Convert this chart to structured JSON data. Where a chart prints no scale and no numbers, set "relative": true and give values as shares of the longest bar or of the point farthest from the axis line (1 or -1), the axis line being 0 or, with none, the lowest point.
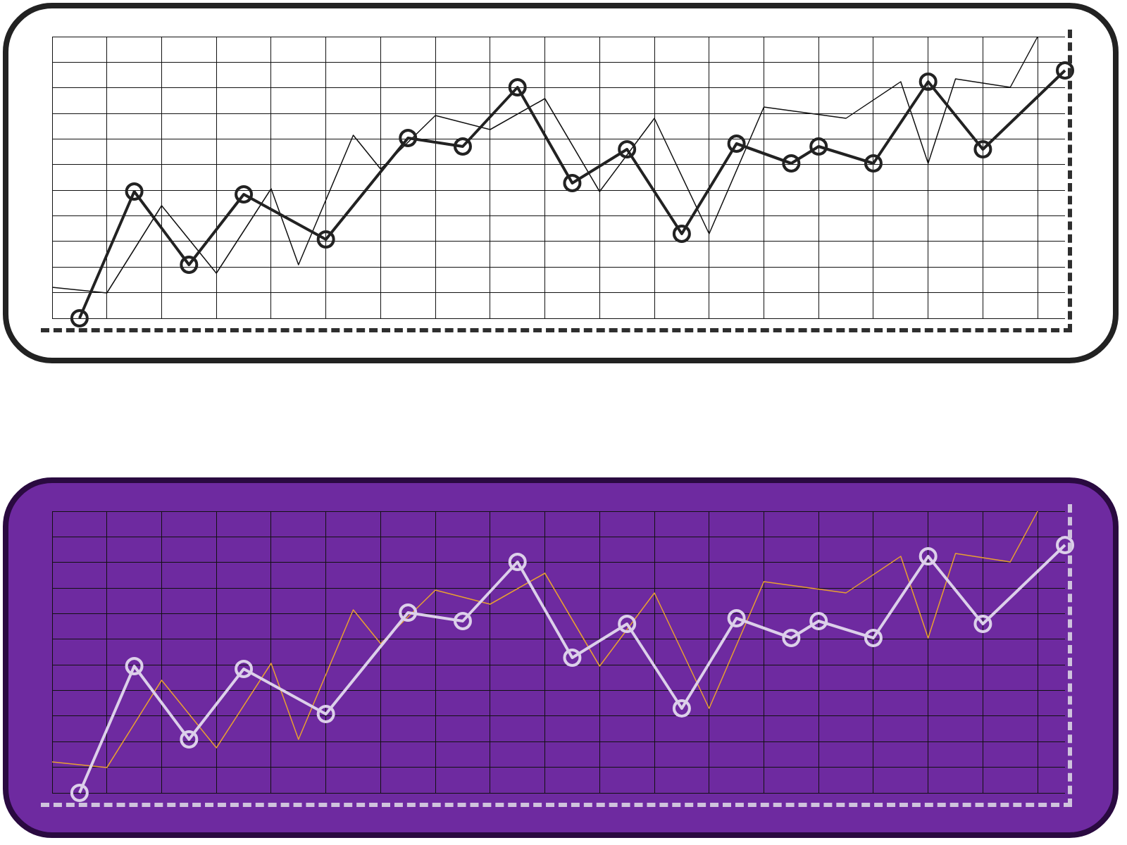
{
  "chart_data": [
    {
      "type": "line",
      "relative": true,
      "grid": true,
      "tick_labels": false,
      "categories": [
        null,
        null,
        null,
        null,
        null,
        null,
        null,
        null,
        null,
        null,
        null,
        null,
        null,
        null,
        null,
        null,
        null,
        null,
        null,
        null,
        null,
        null,
        null,
        null,
        null,
        null,
        null,
        null,
        null,
        null,
        null,
        null,
        null,
        null,
        null,
        null,
        null,
        null
      ],
      "series": [
        {
          "color": "#222222",
          "marker": "circle",
          "values": [
            null,
            0,
            null,
            0.45,
            null,
            0.19,
            null,
            0.44,
            null,
            null,
            0.28,
            null,
            null,
            0.64,
            null,
            0.61,
            null,
            0.82,
            null,
            0.48,
            null,
            0.6,
            null,
            0.3,
            null,
            0.62,
            null,
            0.55,
            0.61,
            null,
            0.55,
            null,
            0.84,
            null,
            0.6,
            null,
            null,
            0.88
          ]
        },
        {
          "color": "#111111",
          "marker": "none",
          "values": [
            0.11,
            null,
            0.09,
            null,
            0.4,
            null,
            0.16,
            null,
            0.46,
            0.19,
            null,
            0.65,
            0.53,
            null,
            0.72,
            null,
            0.67,
            null,
            0.78,
            null,
            0.45,
            null,
            0.71,
            null,
            0.3,
            null,
            0.75,
            null,
            null,
            0.71,
            null,
            0.84,
            0.55,
            0.85,
            null,
            0.82,
            1,
            null
          ]
        }
      ]
    },
    {
      "type": "line",
      "relative": true,
      "grid": true,
      "tick_labels": false,
      "categories": [
        null,
        null,
        null,
        null,
        null,
        null,
        null,
        null,
        null,
        null,
        null,
        null,
        null,
        null,
        null,
        null,
        null,
        null,
        null,
        null,
        null,
        null,
        null,
        null,
        null,
        null,
        null,
        null,
        null,
        null,
        null,
        null,
        null,
        null,
        null,
        null,
        null,
        null
      ],
      "series": [
        {
          "color": "#dcd0ea",
          "marker": "circle",
          "values": [
            null,
            0,
            null,
            0.45,
            null,
            0.19,
            null,
            0.44,
            null,
            null,
            0.28,
            null,
            null,
            0.64,
            null,
            0.61,
            null,
            0.82,
            null,
            0.48,
            null,
            0.6,
            null,
            0.3,
            null,
            0.62,
            null,
            0.55,
            0.61,
            null,
            0.55,
            null,
            0.84,
            null,
            0.6,
            null,
            null,
            0.88
          ]
        },
        {
          "color": "#e8a030",
          "marker": "none",
          "values": [
            0.11,
            null,
            0.09,
            null,
            0.4,
            null,
            0.16,
            null,
            0.46,
            0.19,
            null,
            0.65,
            0.53,
            null,
            0.72,
            null,
            0.67,
            null,
            0.78,
            null,
            0.45,
            null,
            0.71,
            null,
            0.3,
            null,
            0.75,
            null,
            null,
            0.71,
            null,
            0.84,
            0.55,
            0.85,
            null,
            0.82,
            1,
            null
          ]
        }
      ]
    }
  ]
}
